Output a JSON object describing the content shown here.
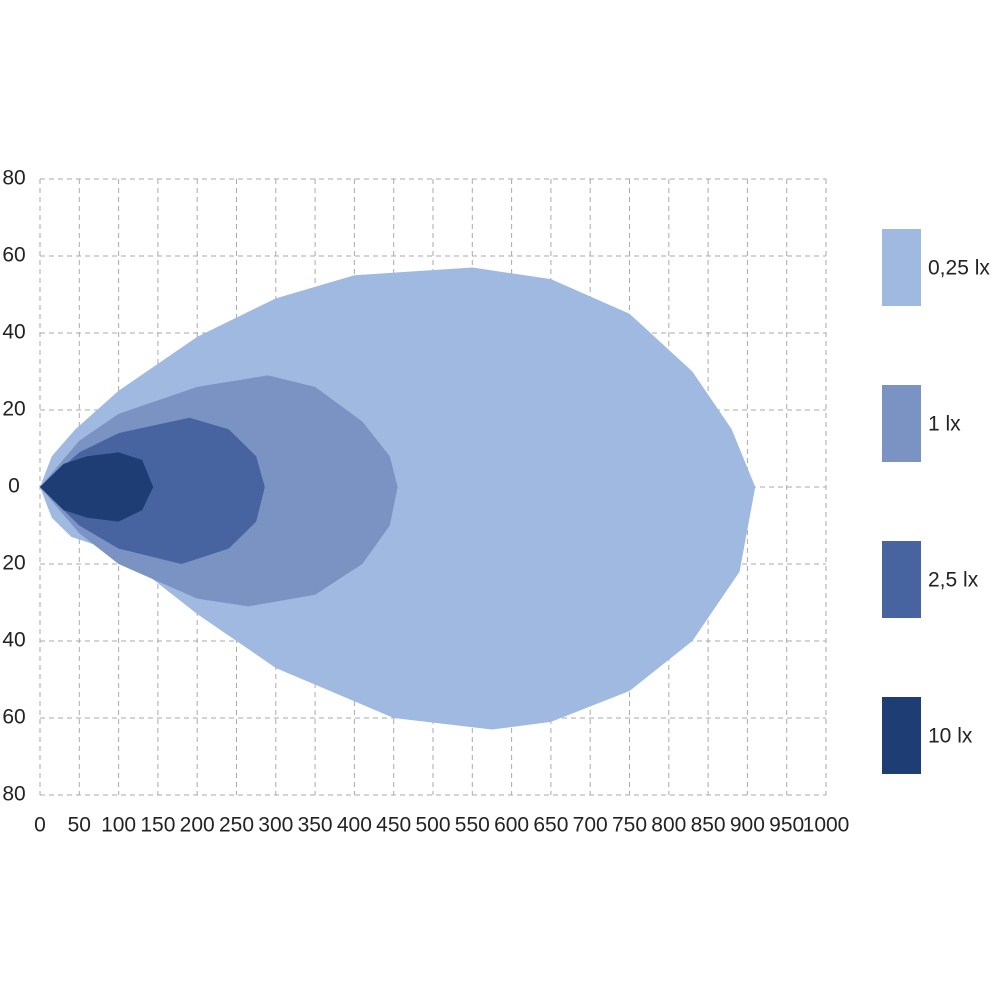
{
  "chart_data": {
    "type": "isoline",
    "xlim": [
      0,
      1000
    ],
    "ylim": [
      -80,
      80
    ],
    "xticks": [
      0,
      50,
      100,
      150,
      200,
      250,
      300,
      350,
      400,
      450,
      500,
      550,
      600,
      650,
      700,
      750,
      800,
      850,
      900,
      950,
      1000
    ],
    "yticks": [
      {
        "value": -80,
        "label": "80"
      },
      {
        "value": -60,
        "label": "60"
      },
      {
        "value": -40,
        "label": "40"
      },
      {
        "value": -20,
        "label": "20"
      },
      0,
      20,
      40,
      60,
      80
    ],
    "grid": true,
    "legend": "right",
    "series": [
      {
        "name": "0,25 lx",
        "color": "#9fb9e0",
        "x": [
          0,
          15,
          45,
          100,
          200,
          300,
          400,
          550,
          650,
          750,
          830,
          880,
          910,
          890,
          830,
          750,
          650,
          575,
          450,
          300,
          200,
          100,
          40,
          15,
          0
        ],
        "values": [
          0,
          8,
          15,
          25,
          39,
          49,
          55,
          57,
          54,
          45,
          30,
          15,
          0,
          -22,
          -40,
          -53,
          -61,
          -63,
          -60,
          -47,
          -33,
          -17,
          -13,
          -8,
          0
        ]
      },
      {
        "name": "1 lx",
        "color": "#7b93c2",
        "x": [
          0,
          50,
          100,
          200,
          290,
          350,
          410,
          445,
          455,
          445,
          410,
          350,
          265,
          200,
          100,
          50,
          0
        ],
        "values": [
          0,
          12,
          19,
          26,
          29,
          26,
          17,
          8,
          0,
          -10,
          -20,
          -28,
          -31,
          -29,
          -20,
          -12,
          0
        ]
      },
      {
        "name": "2,5 lx",
        "color": "#4763a0",
        "x": [
          0,
          50,
          100,
          190,
          240,
          275,
          286,
          275,
          240,
          180,
          100,
          50,
          0
        ],
        "values": [
          0,
          9,
          14,
          18,
          15,
          8,
          0,
          -9,
          -16,
          -20,
          -16,
          -10,
          0
        ]
      },
      {
        "name": "10 lx",
        "color": "#1f3d75",
        "x": [
          0,
          30,
          60,
          100,
          130,
          144,
          130,
          100,
          60,
          30,
          0
        ],
        "values": [
          0,
          6,
          8,
          9,
          7,
          0,
          -6,
          -9,
          -8,
          -6,
          0
        ]
      }
    ]
  }
}
